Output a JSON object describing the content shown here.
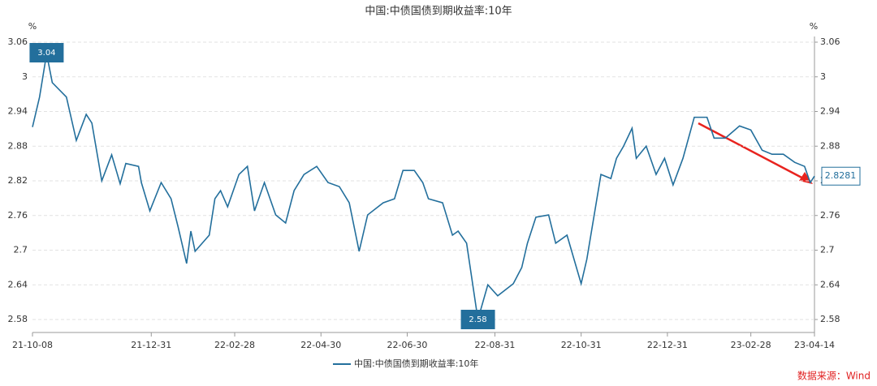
{
  "chart_data": {
    "type": "line",
    "title": "中国:中债国债到期收益率:10年",
    "y_label": "%",
    "x": [
      "21-10-08",
      "21-10-13",
      "21-10-18",
      "21-10-22",
      "21-11-01",
      "21-11-08",
      "21-11-15",
      "21-11-19",
      "21-11-26",
      "21-12-03",
      "21-12-09",
      "21-12-13",
      "21-12-22",
      "21-12-24",
      "21-12-30",
      "22-01-07",
      "22-01-14",
      "22-01-19",
      "22-01-25",
      "22-01-28",
      "22-01-31",
      "22-02-10",
      "22-02-14",
      "22-02-18",
      "22-02-23",
      "22-03-03",
      "22-03-09",
      "22-03-14",
      "22-03-21",
      "22-03-29",
      "22-04-05",
      "22-04-11",
      "22-04-18",
      "22-04-27",
      "22-05-05",
      "22-05-13",
      "22-05-20",
      "22-05-27",
      "22-06-02",
      "22-06-13",
      "22-06-21",
      "22-06-27",
      "22-07-05",
      "22-07-11",
      "22-07-15",
      "22-07-25",
      "22-08-01",
      "22-08-05",
      "22-08-11",
      "22-08-19",
      "22-08-26",
      "22-09-02",
      "22-09-13",
      "22-09-19",
      "22-09-23",
      "22-09-29",
      "22-10-08",
      "22-10-13",
      "22-10-21",
      "22-10-31",
      "22-11-04",
      "22-11-14",
      "22-11-21",
      "22-11-25",
      "22-11-30",
      "22-12-06",
      "22-12-09",
      "22-12-16",
      "22-12-23",
      "22-12-29",
      "23-01-04",
      "23-01-11",
      "23-01-19",
      "23-01-28",
      "23-02-02",
      "23-02-10",
      "23-02-20",
      "23-02-28",
      "23-03-08",
      "23-03-15",
      "23-03-23",
      "23-03-31",
      "23-04-07",
      "23-04-11",
      "23-04-14"
    ],
    "series": [
      {
        "name": "中国:中债国债到期收益率:10年",
        "color": "#236f9c",
        "values": [
          2.913,
          2.965,
          3.04,
          2.99,
          2.965,
          2.89,
          2.935,
          2.92,
          2.82,
          2.865,
          2.815,
          2.85,
          2.845,
          2.817,
          2.768,
          2.817,
          2.789,
          2.74,
          2.677,
          2.733,
          2.698,
          2.726,
          2.789,
          2.803,
          2.775,
          2.831,
          2.845,
          2.768,
          2.817,
          2.761,
          2.747,
          2.803,
          2.831,
          2.845,
          2.817,
          2.81,
          2.782,
          2.698,
          2.761,
          2.782,
          2.789,
          2.838,
          2.838,
          2.817,
          2.789,
          2.782,
          2.726,
          2.733,
          2.712,
          2.58,
          2.64,
          2.621,
          2.642,
          2.67,
          2.712,
          2.757,
          2.761,
          2.712,
          2.726,
          2.642,
          2.684,
          2.831,
          2.824,
          2.859,
          2.88,
          2.911,
          2.859,
          2.88,
          2.831,
          2.859,
          2.813,
          2.859,
          2.93,
          2.93,
          2.894,
          2.894,
          2.915,
          2.908,
          2.873,
          2.866,
          2.866,
          2.852,
          2.845,
          2.817,
          2.8281
        ]
      }
    ],
    "xlim": [
      "21-10-08",
      "23-04-14"
    ],
    "xticks": [
      "21-10-08",
      "21-12-31",
      "22-02-28",
      "22-04-30",
      "22-06-30",
      "22-08-31",
      "22-10-31",
      "22-12-31",
      "23-02-28",
      "23-04-14"
    ],
    "ylim": [
      2.55,
      3.06
    ],
    "yticks": [
      2.58,
      2.64,
      2.7,
      2.76,
      2.82,
      2.88,
      2.94,
      3,
      3.06
    ],
    "grid": true,
    "legend": "bottom",
    "source": "数据来源：Wind"
  }
}
